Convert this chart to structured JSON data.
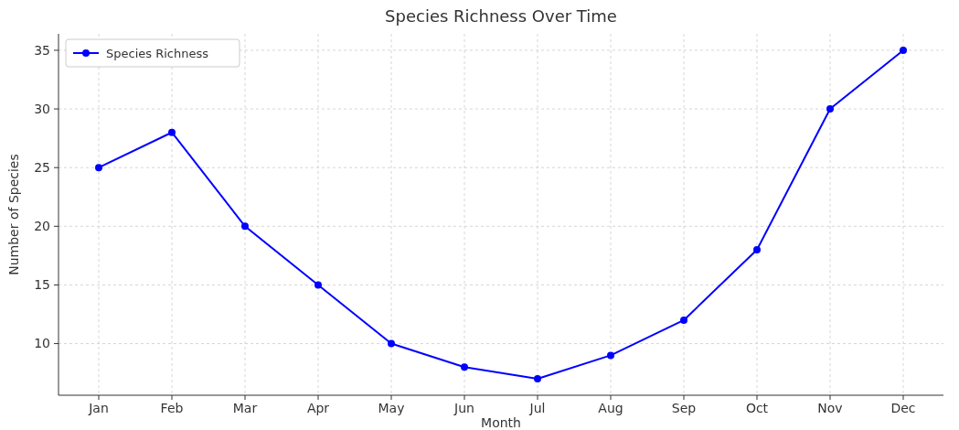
{
  "chart_data": {
    "type": "line",
    "title": "Species Richness Over Time",
    "xlabel": "Month",
    "ylabel": "Number of Species",
    "categories": [
      "Jan",
      "Feb",
      "Mar",
      "Apr",
      "May",
      "Jun",
      "Jul",
      "Aug",
      "Sep",
      "Oct",
      "Nov",
      "Dec"
    ],
    "series": [
      {
        "name": "Species Richness",
        "color": "#0000ff",
        "values": [
          25,
          28,
          20,
          15,
          10,
          8,
          7,
          9,
          12,
          18,
          30,
          35
        ]
      }
    ],
    "ylim": [
      5.6,
      36.4
    ],
    "yticks": [
      10,
      15,
      20,
      25,
      30,
      35
    ],
    "grid": true,
    "legend": "top left",
    "marker": "circle",
    "line_style": "solid"
  }
}
